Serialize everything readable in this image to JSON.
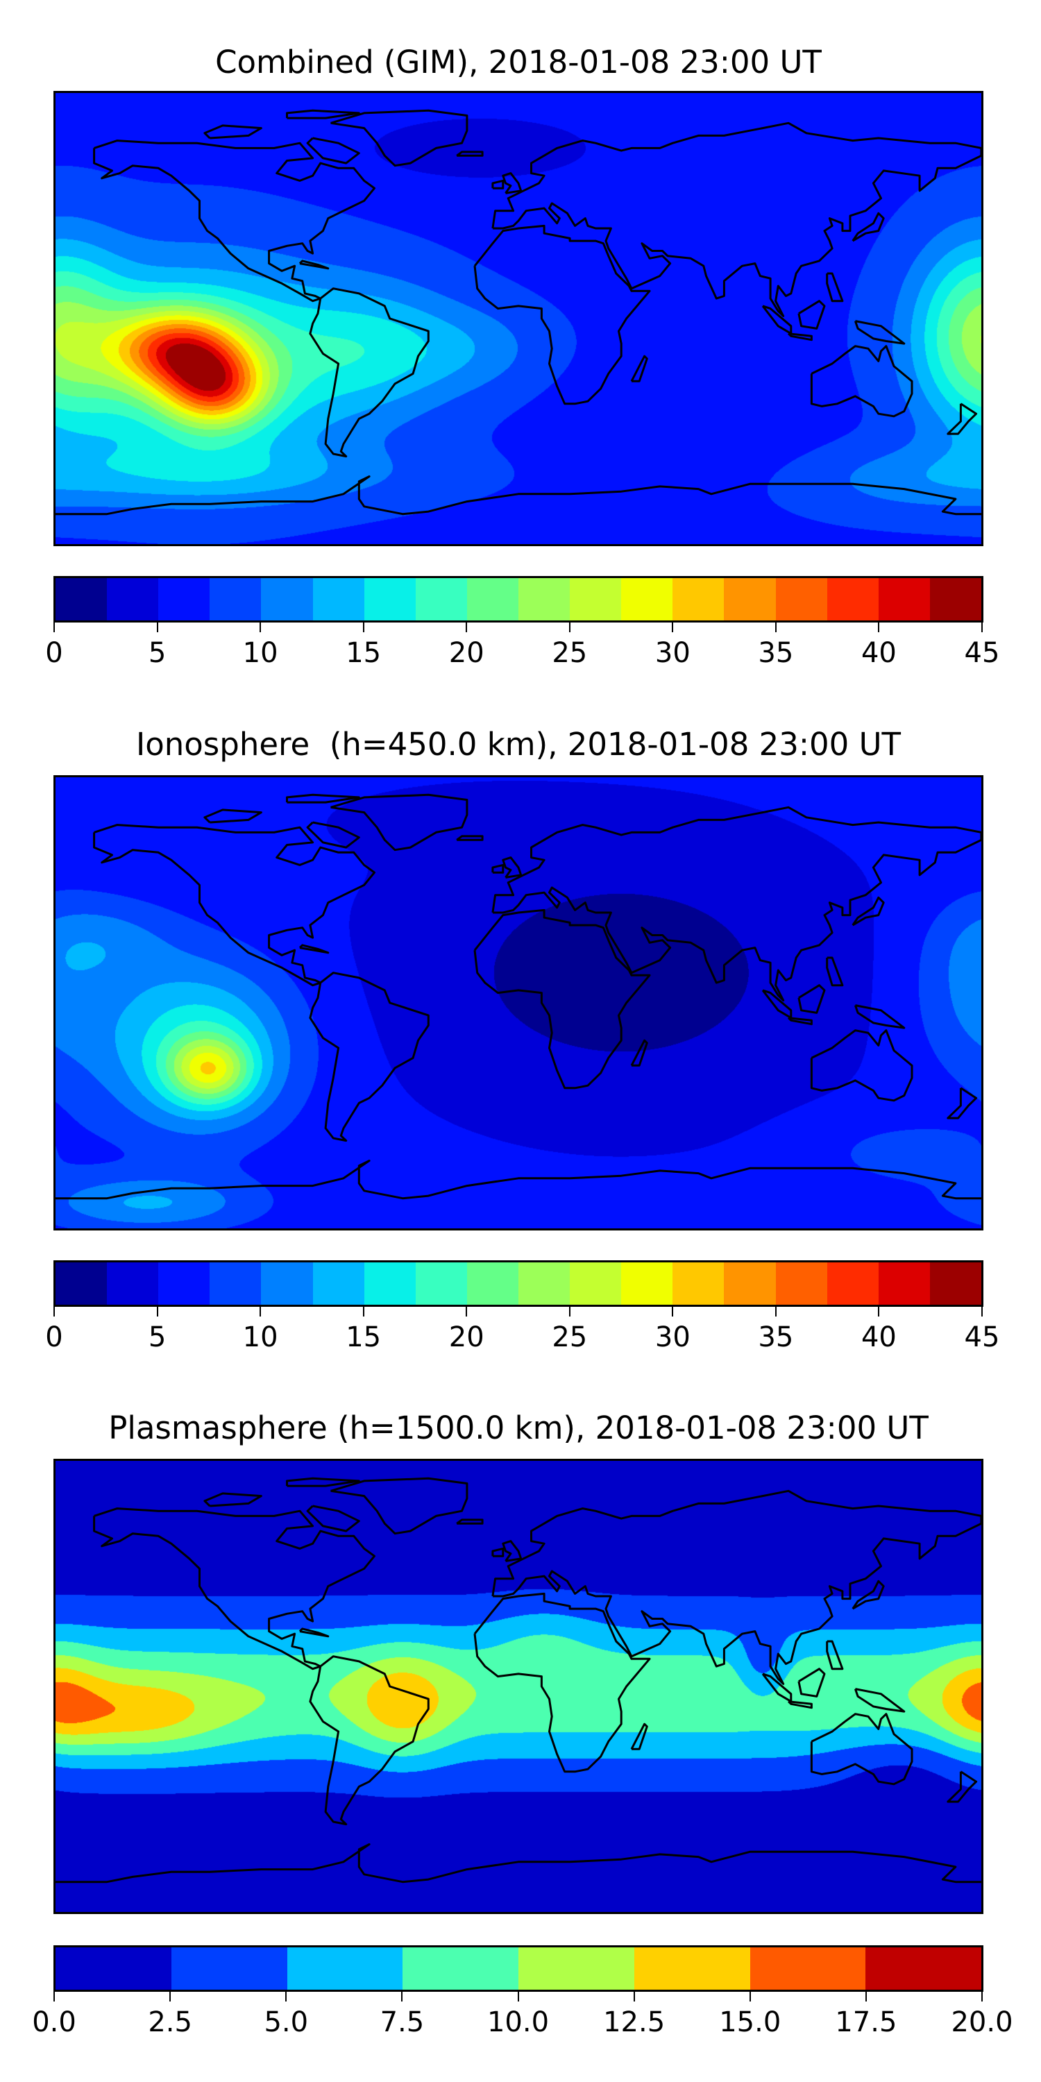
{
  "chart_data": [
    {
      "type": "heatmap",
      "title": "Combined (GIM), 2018-01-08 23:00 UT",
      "projection": "PlateCarree",
      "lon_range": [
        -180,
        180
      ],
      "lat_range": [
        -90,
        90
      ],
      "levels": {
        "min": 0,
        "max": 45,
        "step": 2.5
      },
      "colors": [
        "#000090",
        "#0000d8",
        "#0010ff",
        "#0044ff",
        "#0080ff",
        "#00b8ff",
        "#08f0e8",
        "#38ffc0",
        "#64ff88",
        "#9cff58",
        "#c4ff30",
        "#f0ff00",
        "#ffc800",
        "#ff9400",
        "#ff6000",
        "#ff2c00",
        "#dc0000",
        "#9c0000"
      ],
      "colorbar": {
        "ticks": [
          0,
          5,
          10,
          15,
          20,
          25,
          30,
          35,
          40,
          45
        ],
        "tick_labels": [
          "0",
          "5",
          "10",
          "15",
          "20",
          "25",
          "30",
          "35",
          "40",
          "45"
        ]
      },
      "base": 7,
      "features": [
        {
          "lon": -133,
          "lat": -12,
          "amp": 20,
          "sig_lon": 17,
          "sig_lat": 11
        },
        {
          "lon": -118,
          "lat": -28,
          "amp": 19,
          "sig_lon": 14,
          "sig_lat": 11
        },
        {
          "lon": -125,
          "lat": -18,
          "amp": 13,
          "sig_lon": 40,
          "sig_lat": 28
        },
        {
          "lon": -55,
          "lat": -12,
          "amp": 7,
          "sig_lon": 25,
          "sig_lat": 18
        },
        {
          "lon": -15,
          "lat": -12,
          "amp": 3,
          "sig_lon": 20,
          "sig_lat": 12
        },
        {
          "lon": 180,
          "lat": -5,
          "amp": 13,
          "sig_lon": 18,
          "sig_lat": 25
        },
        {
          "lon": -15,
          "lat": 68,
          "amp": -4,
          "sig_lon": 35,
          "sig_lat": 10
        },
        {
          "lon": 70,
          "lat": -40,
          "amp": -2,
          "sig_lon": 30,
          "sig_lat": 15
        },
        {
          "lon": -120,
          "lat": -62,
          "amp": 5,
          "sig_lon": 55,
          "sig_lat": 9
        },
        {
          "lon": 150,
          "lat": -65,
          "amp": 3,
          "sig_lon": 30,
          "sig_lat": 10
        }
      ]
    },
    {
      "type": "heatmap",
      "title": "Ionosphere  (h=450.0 km), 2018-01-08 23:00 UT",
      "projection": "PlateCarree",
      "lon_range": [
        -180,
        180
      ],
      "lat_range": [
        -90,
        90
      ],
      "levels": {
        "min": 0,
        "max": 45,
        "step": 2.5
      },
      "colors": [
        "#000090",
        "#0000d8",
        "#0010ff",
        "#0044ff",
        "#0080ff",
        "#00b8ff",
        "#08f0e8",
        "#38ffc0",
        "#64ff88",
        "#9cff58",
        "#c4ff30",
        "#f0ff00",
        "#ffc800",
        "#ff9400",
        "#ff6000",
        "#ff2c00",
        "#dc0000",
        "#9c0000"
      ],
      "colorbar": {
        "ticks": [
          0,
          5,
          10,
          15,
          20,
          25,
          30,
          35,
          40,
          45
        ],
        "tick_labels": [
          "0",
          "5",
          "10",
          "15",
          "20",
          "25",
          "30",
          "35",
          "40",
          "45"
        ]
      },
      "base": 5.5,
      "features": [
        {
          "lon": 40,
          "lat": 12,
          "amp": -4.5,
          "sig_lon": 55,
          "sig_lat": 35
        },
        {
          "lon": -120,
          "lat": -27,
          "amp": 14,
          "sig_lon": 11,
          "sig_lat": 9
        },
        {
          "lon": -125,
          "lat": -18,
          "amp": 12,
          "sig_lon": 26,
          "sig_lat": 24
        },
        {
          "lon": -145,
          "lat": -80,
          "amp": 7,
          "sig_lon": 30,
          "sig_lat": 8
        },
        {
          "lon": 178,
          "lat": 5,
          "amp": 5,
          "sig_lon": 18,
          "sig_lat": 25
        },
        {
          "lon": -160,
          "lat": 25,
          "amp": 4,
          "sig_lon": 20,
          "sig_lat": 12
        },
        {
          "lon": -20,
          "lat": 72,
          "amp": -2,
          "sig_lon": 30,
          "sig_lat": 8
        },
        {
          "lon": 150,
          "lat": -60,
          "amp": 3,
          "sig_lon": 25,
          "sig_lat": 10
        }
      ]
    },
    {
      "type": "heatmap",
      "title": "Plasmasphere (h=1500.0 km), 2018-01-08 23:00 UT",
      "projection": "PlateCarree",
      "lon_range": [
        -180,
        180
      ],
      "lat_range": [
        -90,
        90
      ],
      "levels": {
        "min": 0,
        "max": 20,
        "step": 2.5
      },
      "colors": [
        "#0000c8",
        "#0040ff",
        "#00c0ff",
        "#4cffb0",
        "#b0ff48",
        "#ffd000",
        "#ff5a00",
        "#c00000"
      ],
      "colorbar": {
        "ticks": [
          0,
          2.5,
          5,
          7.5,
          10,
          12.5,
          15,
          17.5,
          20
        ],
        "tick_labels": [
          "0.0",
          "2.5",
          "5.0",
          "7.5",
          "10.0",
          "12.5",
          "15.0",
          "17.5",
          "20.0"
        ]
      },
      "base": 1,
      "band": {
        "lat": -3,
        "amp": 8.5,
        "sig_lat": 21
      },
      "features": [
        {
          "lon": -150,
          "lat": -12,
          "amp": 5.5,
          "sig_lon": 25,
          "sig_lat": 11
        },
        {
          "lon": -45,
          "lat": -8,
          "amp": 5.5,
          "sig_lon": 13,
          "sig_lat": 15
        },
        {
          "lon": 180,
          "lat": -5,
          "amp": 5,
          "sig_lon": 12,
          "sig_lat": 14
        },
        {
          "lon": 95,
          "lat": 8,
          "amp": -4,
          "sig_lon": 7,
          "sig_lat": 10
        },
        {
          "lon": 10,
          "lat": 20,
          "amp": 2,
          "sig_lon": 15,
          "sig_lat": 10
        },
        {
          "lon": 150,
          "lat": -30,
          "amp": -2,
          "sig_lon": 20,
          "sig_lat": 10
        }
      ]
    }
  ]
}
